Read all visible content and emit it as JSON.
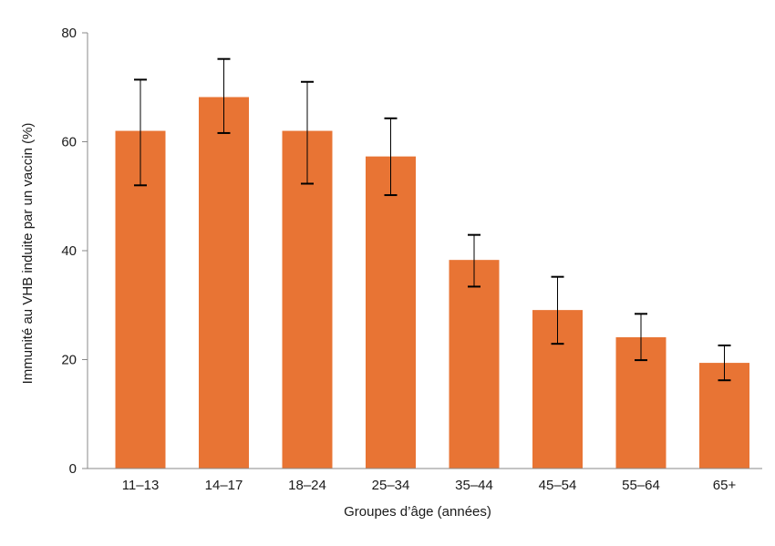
{
  "chart_data": {
    "type": "bar",
    "categories": [
      "11–13",
      "14–17",
      "18–24",
      "25–34",
      "35–44",
      "45–54",
      "55–64",
      "65+"
    ],
    "values": [
      62,
      68.2,
      62,
      57.3,
      38.3,
      29.1,
      24.1,
      19.4
    ],
    "error_low": [
      52,
      61.6,
      52.3,
      50.2,
      33.4,
      22.9,
      19.9,
      16.2
    ],
    "error_high": [
      71.4,
      75.2,
      71,
      64.3,
      42.9,
      35.2,
      28.4,
      22.6
    ],
    "xlabel": "Groupes d’âge (années)",
    "ylabel": "Immunité au VHB induite par un vaccin (%)",
    "ylim": [
      0,
      80
    ],
    "yticks": [
      0,
      20,
      40,
      60,
      80
    ],
    "grid": false,
    "colors": {
      "bar": "#E87434",
      "error_bar": "#000000",
      "axis": "#888888"
    }
  }
}
